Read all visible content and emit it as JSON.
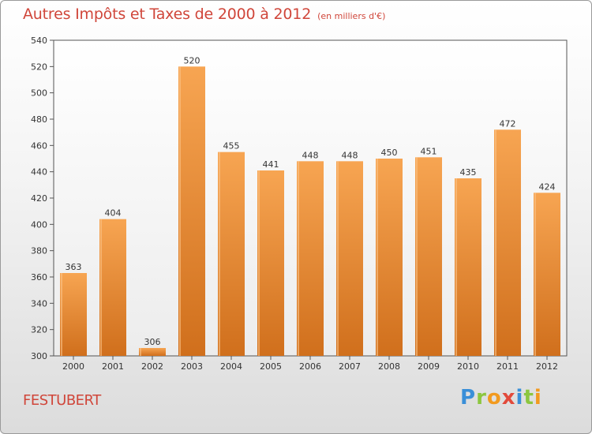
{
  "title": "Autres Impôts et Taxes de 2000 à 2012",
  "subtitle": "(en milliers d'€)",
  "commune": "FESTUBERT",
  "logo_letters": [
    "P",
    "r",
    "o",
    "x",
    "i",
    "t",
    "i"
  ],
  "colors": {
    "bar_top": "#f7a552",
    "bar_bottom": "#d06f1c",
    "title": "#d0463a",
    "axis": "#333333"
  },
  "chart_data": {
    "type": "bar",
    "title": "Autres Impôts et Taxes de 2000 à 2012",
    "subtitle": "(en milliers d'€)",
    "xlabel": "",
    "ylabel": "",
    "categories": [
      "2000",
      "2001",
      "2002",
      "2003",
      "2004",
      "2005",
      "2006",
      "2007",
      "2008",
      "2009",
      "2010",
      "2011",
      "2012"
    ],
    "values": [
      363,
      404,
      306,
      520,
      455,
      441,
      448,
      448,
      450,
      451,
      435,
      472,
      424
    ],
    "ylim": [
      300,
      540
    ],
    "yticks": [
      300,
      320,
      340,
      360,
      380,
      400,
      420,
      440,
      460,
      480,
      500,
      520,
      540
    ],
    "grid": false,
    "legend": "none"
  }
}
